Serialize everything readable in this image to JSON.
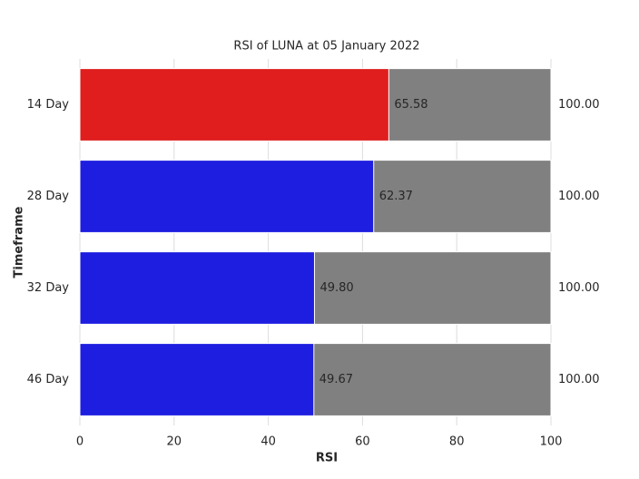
{
  "chart_data": {
    "type": "bar",
    "orientation": "horizontal",
    "title": "RSI of LUNA at 05 January 2022",
    "x_label": "RSI",
    "y_label": "Timeframe",
    "categories": [
      "14 Day",
      "28 Day",
      "32 Day",
      "46 Day"
    ],
    "values": [
      65.58,
      62.37,
      49.8,
      49.67
    ],
    "value_labels": [
      "65.58",
      "62.37",
      "49.80",
      "49.67"
    ],
    "colors": [
      "#e01e1e",
      "#1e1ee0",
      "#1e1ee0",
      "#1e1ee0"
    ],
    "totals": [
      100,
      100,
      100,
      100
    ],
    "total_labels": [
      "100.00",
      "100.00",
      "100.00",
      "100.00"
    ],
    "total_color": "#808080",
    "xlim": [
      0,
      100
    ],
    "xticks": [
      0,
      20,
      40,
      60,
      80,
      100
    ],
    "grid": true
  }
}
